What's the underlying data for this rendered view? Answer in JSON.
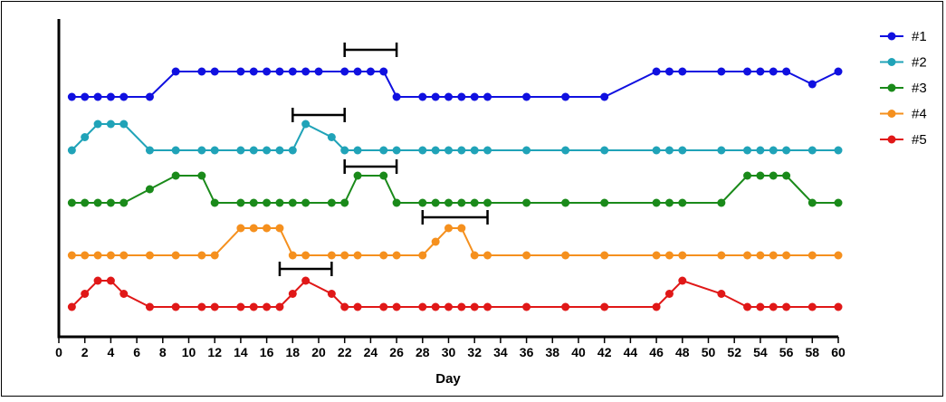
{
  "chart_data": {
    "type": "line",
    "title": "",
    "xlabel": "Day",
    "ylabel": "",
    "xlim": [
      0,
      60
    ],
    "xticks": [
      0,
      2,
      4,
      6,
      8,
      10,
      12,
      14,
      16,
      18,
      20,
      22,
      24,
      26,
      28,
      30,
      32,
      34,
      36,
      38,
      40,
      42,
      44,
      46,
      48,
      50,
      52,
      54,
      56,
      58,
      60
    ],
    "y_axis_labels": "none",
    "grid": false,
    "legend_position": "top-right",
    "series": [
      {
        "name": "#1",
        "color": "#1010e0",
        "x": [
          1,
          2,
          3,
          4,
          5,
          7,
          9,
          11,
          12,
          14,
          15,
          16,
          17,
          18,
          19,
          20,
          22,
          23,
          24,
          25,
          26,
          28,
          29,
          30,
          31,
          32,
          33,
          36,
          39,
          42,
          46,
          47,
          48,
          51,
          53,
          54,
          55,
          56,
          58,
          60
        ],
        "y": [
          0,
          0,
          0,
          0,
          0,
          0,
          1,
          1,
          1,
          1,
          1,
          1,
          1,
          1,
          1,
          1,
          1,
          1,
          1,
          1,
          0,
          0,
          0,
          0,
          0,
          0,
          0,
          0,
          0,
          0,
          1,
          1,
          1,
          1,
          1,
          1,
          1,
          1,
          0.5,
          1
        ]
      },
      {
        "name": "#2",
        "color": "#20a3b8",
        "x": [
          1,
          2,
          3,
          4,
          5,
          7,
          9,
          11,
          12,
          14,
          15,
          16,
          17,
          18,
          19,
          21,
          22,
          23,
          25,
          26,
          28,
          29,
          30,
          31,
          32,
          33,
          36,
          39,
          42,
          46,
          47,
          48,
          51,
          53,
          54,
          55,
          56,
          58,
          60
        ],
        "y": [
          0,
          0.5,
          1,
          1,
          1,
          0,
          0,
          0,
          0,
          0,
          0,
          0,
          0,
          0,
          1,
          0.5,
          0,
          0,
          0,
          0,
          0,
          0,
          0,
          0,
          0,
          0,
          0,
          0,
          0,
          0,
          0,
          0,
          0,
          0,
          0,
          0,
          0,
          0,
          0
        ]
      },
      {
        "name": "#3",
        "color": "#1a8a1a",
        "x": [
          1,
          2,
          3,
          4,
          5,
          7,
          9,
          11,
          12,
          14,
          15,
          16,
          17,
          18,
          19,
          21,
          22,
          23,
          25,
          26,
          28,
          29,
          30,
          31,
          32,
          33,
          36,
          39,
          42,
          46,
          47,
          48,
          51,
          53,
          54,
          55,
          56,
          58,
          60
        ],
        "y": [
          0,
          0,
          0,
          0,
          0,
          0.5,
          1,
          1,
          0,
          0,
          0,
          0,
          0,
          0,
          0,
          0,
          0,
          1,
          1,
          0,
          0,
          0,
          0,
          0,
          0,
          0,
          0,
          0,
          0,
          0,
          0,
          0,
          0,
          1,
          1,
          1,
          1,
          0,
          0
        ]
      },
      {
        "name": "#4",
        "color": "#f5901e",
        "x": [
          1,
          2,
          3,
          4,
          5,
          7,
          9,
          11,
          12,
          14,
          15,
          16,
          17,
          18,
          19,
          21,
          22,
          23,
          25,
          26,
          28,
          29,
          30,
          31,
          32,
          33,
          36,
          39,
          42,
          46,
          47,
          48,
          51,
          53,
          54,
          55,
          56,
          58,
          60
        ],
        "y": [
          0,
          0,
          0,
          0,
          0,
          0,
          0,
          0,
          0,
          1,
          1,
          1,
          1,
          0,
          0,
          0,
          0,
          0,
          0,
          0,
          0,
          0.5,
          1,
          1,
          0,
          0,
          0,
          0,
          0,
          0,
          0,
          0,
          0,
          0,
          0,
          0,
          0,
          0,
          0
        ]
      },
      {
        "name": "#5",
        "color": "#e01818",
        "x": [
          1,
          2,
          3,
          4,
          5,
          7,
          9,
          11,
          12,
          14,
          15,
          16,
          17,
          18,
          19,
          21,
          22,
          23,
          25,
          26,
          28,
          29,
          30,
          31,
          32,
          33,
          36,
          39,
          42,
          46,
          47,
          48,
          51,
          53,
          54,
          55,
          56,
          58,
          60
        ],
        "y": [
          0,
          0.5,
          1,
          1,
          0.5,
          0,
          0,
          0,
          0,
          0,
          0,
          0,
          0,
          0.5,
          1,
          0.5,
          0,
          0,
          0,
          0,
          0,
          0,
          0,
          0,
          0,
          0,
          0,
          0,
          0,
          0,
          0.5,
          1,
          0.5,
          0,
          0,
          0,
          0,
          0,
          0
        ]
      }
    ],
    "annotations": [
      {
        "type": "bracket",
        "series": "#1",
        "x_start": 22,
        "x_end": 26
      },
      {
        "type": "bracket",
        "series": "#2",
        "x_start": 18,
        "x_end": 22
      },
      {
        "type": "bracket",
        "series": "#3",
        "x_start": 22,
        "x_end": 26
      },
      {
        "type": "bracket",
        "series": "#4",
        "x_start": 28,
        "x_end": 33
      },
      {
        "type": "bracket",
        "series": "#5",
        "x_start": 17,
        "x_end": 21
      }
    ]
  }
}
